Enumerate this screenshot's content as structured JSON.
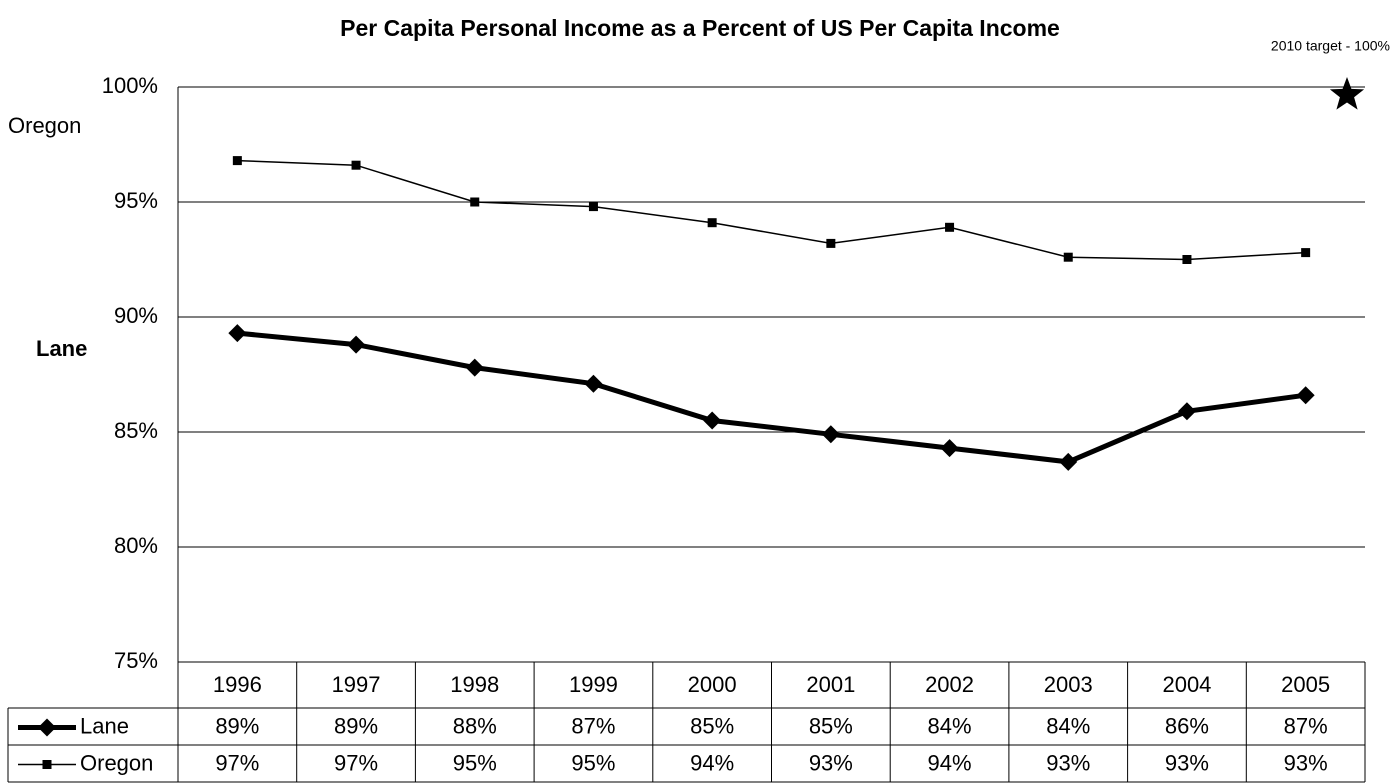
{
  "chart_data": {
    "type": "line",
    "title": "Per Capita Personal Income as a Percent of US Per Capita Income",
    "target": {
      "label": "2010 target - 100%",
      "value": 100
    },
    "categories": [
      "1996",
      "1997",
      "1998",
      "1999",
      "2000",
      "2001",
      "2002",
      "2003",
      "2004",
      "2005"
    ],
    "series": [
      {
        "name": "Lane",
        "color": "#000000",
        "marker": "diamond",
        "line_width": 5,
        "values": [
          89.3,
          88.8,
          87.8,
          87.1,
          85.5,
          84.9,
          84.3,
          83.7,
          85.9,
          86.6
        ],
        "value_labels": [
          "89%",
          "89%",
          "88%",
          "87%",
          "85%",
          "85%",
          "84%",
          "84%",
          "86%",
          "87%"
        ]
      },
      {
        "name": "Oregon",
        "color": "#000000",
        "marker": "square",
        "line_width": 1.5,
        "values": [
          96.8,
          96.6,
          95.0,
          94.8,
          94.1,
          93.2,
          93.9,
          92.6,
          92.5,
          92.8
        ],
        "value_labels": [
          "97%",
          "97%",
          "95%",
          "95%",
          "94%",
          "93%",
          "94%",
          "93%",
          "93%",
          "93%"
        ]
      }
    ],
    "annotations": [
      {
        "text": "Oregon",
        "series": 1
      },
      {
        "text": "Lane",
        "series": 0
      }
    ],
    "ylim": [
      75,
      100
    ],
    "yticks": [
      {
        "value": 75,
        "label": "75%"
      },
      {
        "value": 80,
        "label": "80%"
      },
      {
        "value": 85,
        "label": "85%"
      },
      {
        "value": 90,
        "label": "90%"
      },
      {
        "value": 95,
        "label": "95%"
      },
      {
        "value": 100,
        "label": "100%"
      }
    ],
    "grid": true
  }
}
